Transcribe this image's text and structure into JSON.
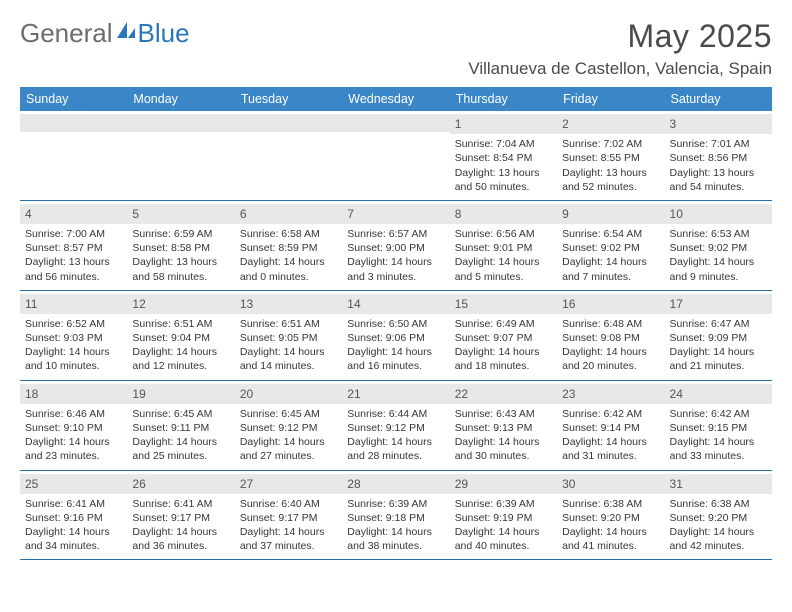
{
  "brand": {
    "text1": "General",
    "text2": "Blue",
    "logo_color": "#2b77bd",
    "text1_color": "#6d6d6d"
  },
  "title": "May 2025",
  "location": "Villanueva de Castellon, Valencia, Spain",
  "colors": {
    "header_bg": "#3b86c6",
    "header_text": "#ffffff",
    "band_bg": "#e7e8e9",
    "row_border": "#2f6fa8",
    "body_text": "#363636"
  },
  "day_names": [
    "Sunday",
    "Monday",
    "Tuesday",
    "Wednesday",
    "Thursday",
    "Friday",
    "Saturday"
  ],
  "weeks": [
    [
      null,
      null,
      null,
      null,
      {
        "n": "1",
        "sr": "7:04 AM",
        "ss": "8:54 PM",
        "dl": "13 hours and 50 minutes."
      },
      {
        "n": "2",
        "sr": "7:02 AM",
        "ss": "8:55 PM",
        "dl": "13 hours and 52 minutes."
      },
      {
        "n": "3",
        "sr": "7:01 AM",
        "ss": "8:56 PM",
        "dl": "13 hours and 54 minutes."
      }
    ],
    [
      {
        "n": "4",
        "sr": "7:00 AM",
        "ss": "8:57 PM",
        "dl": "13 hours and 56 minutes."
      },
      {
        "n": "5",
        "sr": "6:59 AM",
        "ss": "8:58 PM",
        "dl": "13 hours and 58 minutes."
      },
      {
        "n": "6",
        "sr": "6:58 AM",
        "ss": "8:59 PM",
        "dl": "14 hours and 0 minutes."
      },
      {
        "n": "7",
        "sr": "6:57 AM",
        "ss": "9:00 PM",
        "dl": "14 hours and 3 minutes."
      },
      {
        "n": "8",
        "sr": "6:56 AM",
        "ss": "9:01 PM",
        "dl": "14 hours and 5 minutes."
      },
      {
        "n": "9",
        "sr": "6:54 AM",
        "ss": "9:02 PM",
        "dl": "14 hours and 7 minutes."
      },
      {
        "n": "10",
        "sr": "6:53 AM",
        "ss": "9:02 PM",
        "dl": "14 hours and 9 minutes."
      }
    ],
    [
      {
        "n": "11",
        "sr": "6:52 AM",
        "ss": "9:03 PM",
        "dl": "14 hours and 10 minutes."
      },
      {
        "n": "12",
        "sr": "6:51 AM",
        "ss": "9:04 PM",
        "dl": "14 hours and 12 minutes."
      },
      {
        "n": "13",
        "sr": "6:51 AM",
        "ss": "9:05 PM",
        "dl": "14 hours and 14 minutes."
      },
      {
        "n": "14",
        "sr": "6:50 AM",
        "ss": "9:06 PM",
        "dl": "14 hours and 16 minutes."
      },
      {
        "n": "15",
        "sr": "6:49 AM",
        "ss": "9:07 PM",
        "dl": "14 hours and 18 minutes."
      },
      {
        "n": "16",
        "sr": "6:48 AM",
        "ss": "9:08 PM",
        "dl": "14 hours and 20 minutes."
      },
      {
        "n": "17",
        "sr": "6:47 AM",
        "ss": "9:09 PM",
        "dl": "14 hours and 21 minutes."
      }
    ],
    [
      {
        "n": "18",
        "sr": "6:46 AM",
        "ss": "9:10 PM",
        "dl": "14 hours and 23 minutes."
      },
      {
        "n": "19",
        "sr": "6:45 AM",
        "ss": "9:11 PM",
        "dl": "14 hours and 25 minutes."
      },
      {
        "n": "20",
        "sr": "6:45 AM",
        "ss": "9:12 PM",
        "dl": "14 hours and 27 minutes."
      },
      {
        "n": "21",
        "sr": "6:44 AM",
        "ss": "9:12 PM",
        "dl": "14 hours and 28 minutes."
      },
      {
        "n": "22",
        "sr": "6:43 AM",
        "ss": "9:13 PM",
        "dl": "14 hours and 30 minutes."
      },
      {
        "n": "23",
        "sr": "6:42 AM",
        "ss": "9:14 PM",
        "dl": "14 hours and 31 minutes."
      },
      {
        "n": "24",
        "sr": "6:42 AM",
        "ss": "9:15 PM",
        "dl": "14 hours and 33 minutes."
      }
    ],
    [
      {
        "n": "25",
        "sr": "6:41 AM",
        "ss": "9:16 PM",
        "dl": "14 hours and 34 minutes."
      },
      {
        "n": "26",
        "sr": "6:41 AM",
        "ss": "9:17 PM",
        "dl": "14 hours and 36 minutes."
      },
      {
        "n": "27",
        "sr": "6:40 AM",
        "ss": "9:17 PM",
        "dl": "14 hours and 37 minutes."
      },
      {
        "n": "28",
        "sr": "6:39 AM",
        "ss": "9:18 PM",
        "dl": "14 hours and 38 minutes."
      },
      {
        "n": "29",
        "sr": "6:39 AM",
        "ss": "9:19 PM",
        "dl": "14 hours and 40 minutes."
      },
      {
        "n": "30",
        "sr": "6:38 AM",
        "ss": "9:20 PM",
        "dl": "14 hours and 41 minutes."
      },
      {
        "n": "31",
        "sr": "6:38 AM",
        "ss": "9:20 PM",
        "dl": "14 hours and 42 minutes."
      }
    ]
  ],
  "labels": {
    "sunrise": "Sunrise:",
    "sunset": "Sunset:",
    "daylight": "Daylight:"
  }
}
